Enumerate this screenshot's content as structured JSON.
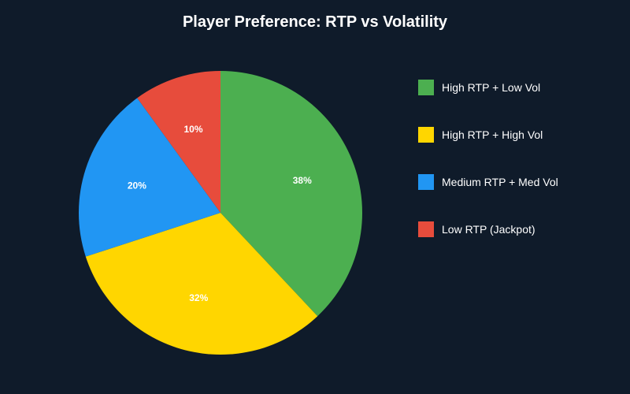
{
  "chart_data": {
    "type": "pie",
    "title": "Player Preference: RTP vs Volatility",
    "slices": [
      {
        "name": "High RTP + Low Vol",
        "value": 38,
        "label": "38%",
        "color": "#4caf50"
      },
      {
        "name": "High RTP + High Vol",
        "value": 32,
        "label": "32%",
        "color": "#ffd600"
      },
      {
        "name": "Medium RTP + Med Vol",
        "value": 20,
        "label": "20%",
        "color": "#2196f3"
      },
      {
        "name": "Low RTP (Jackpot)",
        "value": 10,
        "label": "10%",
        "color": "#e74c3c"
      }
    ],
    "legend_position": "right"
  }
}
